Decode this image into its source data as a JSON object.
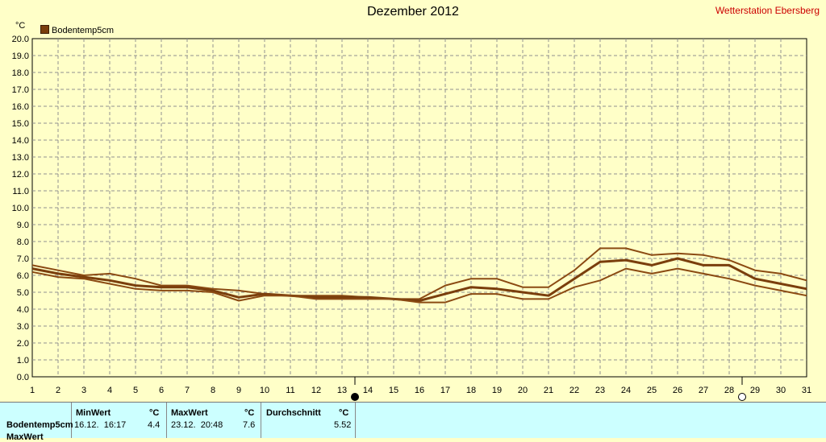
{
  "title": "Dezember 2012",
  "station": "Wetterstation Ebersberg",
  "unit": "°C",
  "legend": {
    "label": "Bodentemp5cm",
    "color": "#7a3e0c"
  },
  "chart_data": {
    "type": "line",
    "title": "Dezember 2012",
    "ylabel": "°C",
    "ylim": [
      0,
      20
    ],
    "xlim": [
      1,
      31
    ],
    "grid": true,
    "legend_position": "top-left",
    "x": [
      1,
      2,
      3,
      4,
      5,
      6,
      7,
      8,
      9,
      10,
      11,
      12,
      13,
      14,
      15,
      16,
      17,
      18,
      19,
      20,
      21,
      22,
      23,
      24,
      25,
      26,
      27,
      28,
      29,
      30,
      31
    ],
    "yticks": [
      "0.0",
      "1.0",
      "2.0",
      "3.0",
      "4.0",
      "5.0",
      "6.0",
      "7.0",
      "8.0",
      "9.0",
      "10.0",
      "11.0",
      "12.0",
      "13.0",
      "14.0",
      "15.0",
      "16.0",
      "17.0",
      "18.0",
      "19.0",
      "20.0"
    ],
    "series": [
      {
        "name": "Bodentemp5cm",
        "role": "max",
        "values": [
          6.6,
          6.3,
          6.0,
          6.1,
          5.8,
          5.4,
          5.4,
          5.2,
          5.1,
          4.9,
          4.8,
          4.8,
          4.8,
          4.7,
          4.6,
          4.6,
          5.4,
          5.8,
          5.8,
          5.3,
          5.3,
          6.3,
          7.6,
          7.6,
          7.2,
          7.3,
          7.2,
          6.9,
          6.3,
          6.1,
          5.7
        ]
      },
      {
        "name": "Bodentemp5cm",
        "role": "mean",
        "values": [
          6.4,
          6.1,
          5.9,
          5.7,
          5.4,
          5.3,
          5.3,
          5.1,
          4.7,
          4.9,
          4.8,
          4.7,
          4.7,
          4.7,
          4.6,
          4.5,
          4.9,
          5.3,
          5.2,
          5.0,
          4.8,
          5.8,
          6.8,
          6.9,
          6.6,
          7.0,
          6.6,
          6.6,
          5.8,
          5.5,
          5.2
        ]
      },
      {
        "name": "Bodentemp5cm",
        "role": "min",
        "values": [
          6.2,
          5.9,
          5.8,
          5.5,
          5.2,
          5.1,
          5.1,
          5.0,
          4.5,
          4.8,
          4.8,
          4.6,
          4.6,
          4.6,
          4.6,
          4.4,
          4.4,
          4.9,
          4.9,
          4.6,
          4.6,
          5.3,
          5.7,
          6.4,
          6.1,
          6.4,
          6.1,
          5.8,
          5.4,
          5.1,
          4.8
        ]
      }
    ],
    "markers": [
      {
        "day": 13.5,
        "style": "filled"
      },
      {
        "day": 28.5,
        "style": "open"
      }
    ]
  },
  "stats": {
    "name": "Bodentemp5cm",
    "min_label": "MinWert",
    "min_unit": "°C",
    "min_date": "16.12.  16:17",
    "min_value": "4.4",
    "max_label": "MaxWert",
    "max_unit": "°C",
    "max_date": "23.12.  20:48",
    "max_value": "7.6",
    "avg_label": "Durchschnitt",
    "avg_unit": "°C",
    "avg_value": "5.52",
    "next_row": "MaxWert"
  }
}
